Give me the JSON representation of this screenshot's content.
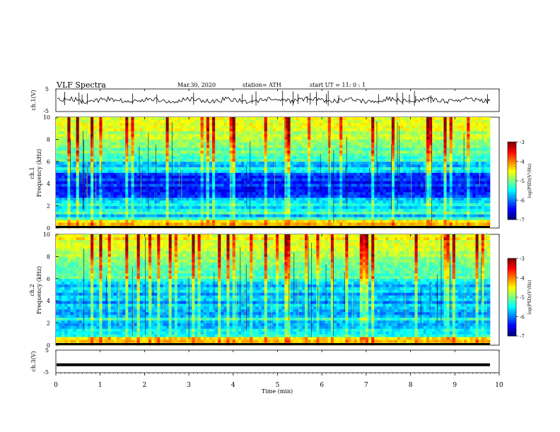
{
  "header": {
    "title": "VLF  Spectra",
    "date": "Mar.30, 2020",
    "station": "station= ATH",
    "start": "start  UT  =    11: 0   : 1"
  },
  "colors": {
    "background": "#ffffff",
    "axis": "#000000",
    "trace": "#000000"
  },
  "chart_data": [
    {
      "type": "line",
      "ylabel": "ch.1(V)",
      "ylim": [
        -5,
        5
      ],
      "yticks": [
        "5",
        "-5"
      ],
      "xlim": [
        0,
        10
      ],
      "description": "Ch.1 waveform amplitude trace with small fluctuations around 0 V and sparse spikes"
    },
    {
      "type": "heatmap",
      "ylabel": "ch.1\nFrequency (kHz)",
      "ylim": [
        0,
        10
      ],
      "yticks": [
        "0",
        "2",
        "4",
        "6",
        "8",
        "10"
      ],
      "xlim": [
        0,
        9.8
      ],
      "colorbar": {
        "label": "log(PSD)(V²/Hz)",
        "ticks": [
          "-3",
          "-4",
          "-5",
          "-6",
          "-7"
        ],
        "range": [
          -7,
          -3
        ]
      }
    },
    {
      "type": "heatmap",
      "ylabel": "ch.2\nFrequency (kHz)",
      "ylim": [
        0,
        10
      ],
      "yticks": [
        "0",
        "2",
        "4",
        "6",
        "8",
        "10"
      ],
      "xlim": [
        0,
        9.8
      ],
      "colorbar": {
        "label": "log(PSD)(V²/Hz)",
        "ticks": [
          "-3",
          "-4",
          "-5",
          "-6",
          "-7"
        ],
        "range": [
          -7,
          -3
        ]
      }
    },
    {
      "type": "line",
      "ylabel": "ch.3(V)",
      "ylim": [
        -5,
        5
      ],
      "yticks": [
        "5",
        "-5"
      ],
      "xlim": [
        0,
        10
      ],
      "value_level": -1.5
    }
  ],
  "xaxis": {
    "label": "Time  (min)",
    "ticks": [
      "0",
      "1",
      "2",
      "3",
      "4",
      "5",
      "6",
      "7",
      "8",
      "9",
      "10"
    ]
  }
}
